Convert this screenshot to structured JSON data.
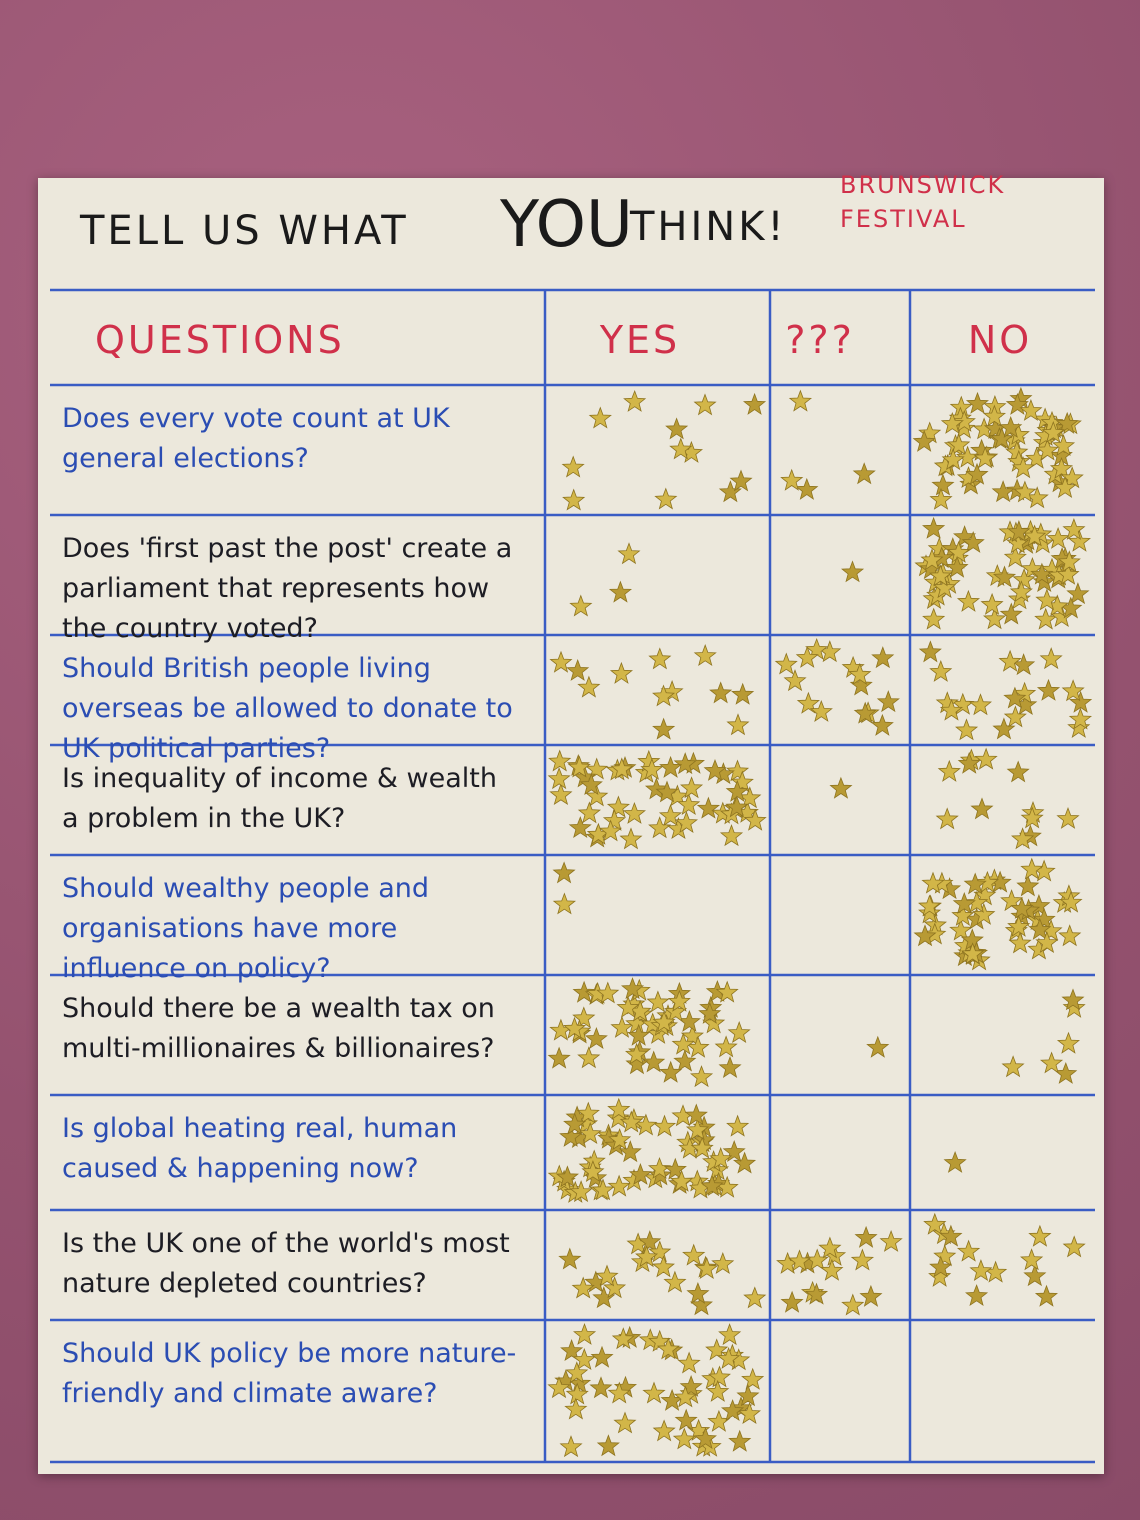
{
  "header": {
    "title_parts": [
      "TELL US WHAT",
      "YOU",
      "THINK!"
    ],
    "organizer": "BRUNSWICK FESTIVAL"
  },
  "table": {
    "columns": [
      "QUESTIONS",
      "YES",
      "???",
      "NO"
    ],
    "rows": [
      {
        "question": "Does every vote count at UK general elections?",
        "votes": [
          12,
          4,
          60
        ]
      },
      {
        "question": "Does 'first past the post' create a parliament that represents how the country voted?",
        "votes": [
          3,
          1,
          60
        ]
      },
      {
        "question": "Should British people living overseas be allowed to donate to UK political parties?",
        "votes": [
          12,
          15,
          20
        ]
      },
      {
        "question": "Is inequality of income & wealth a problem in the UK?",
        "votes": [
          50,
          1,
          12
        ]
      },
      {
        "question": "Should wealthy people and organisations have more influence on policy?",
        "votes": [
          2,
          0,
          50
        ]
      },
      {
        "question": "Should there be a wealth tax on multi-millionaires & billionaires?",
        "votes": [
          50,
          1,
          6
        ]
      },
      {
        "question": "Is global heating real, human caused & happening now?",
        "votes": [
          60,
          0,
          1
        ]
      },
      {
        "question": "Is the UK one of the world's most nature depleted countries?",
        "votes": [
          20,
          15,
          15
        ]
      },
      {
        "question": "Should UK policy be more nature-friendly and climate aware?",
        "votes": [
          50,
          0,
          0
        ]
      }
    ]
  }
}
